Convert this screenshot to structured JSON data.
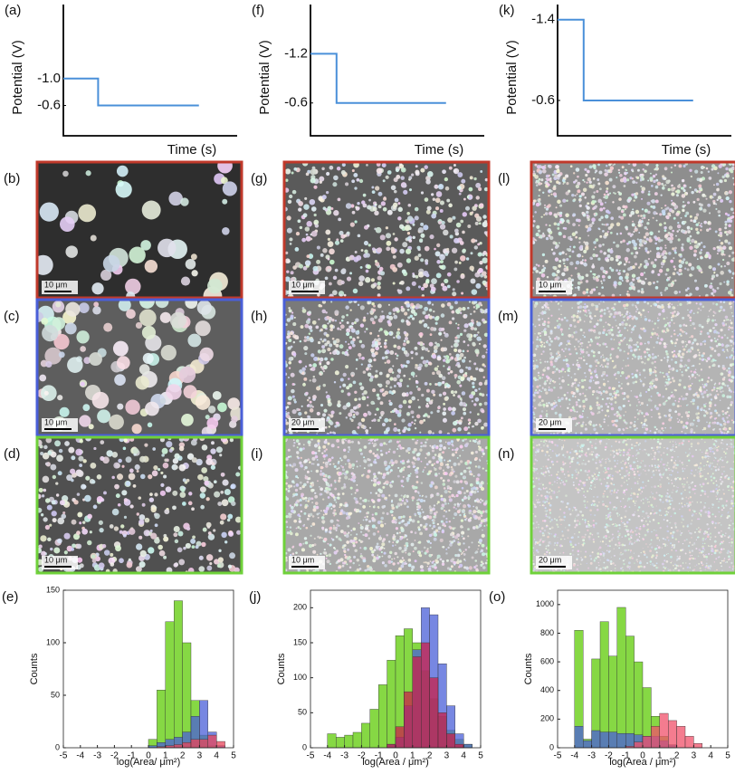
{
  "chart_data": [
    {
      "type": "step",
      "label": "(a)",
      "xlabel": "Time (s)",
      "ylabel": "Potential (V)",
      "xlim": [
        0,
        1
      ],
      "ylim": [
        -0.15,
        -2.1
      ],
      "yticks": [
        {
          "value": -1.0,
          "label": "-1.0"
        },
        {
          "value": -0.6,
          "label": "-0.6"
        }
      ],
      "series": [
        {
          "color": "#4a90d9",
          "x": [
            0,
            0.2,
            0.2,
            0.78
          ],
          "values": [
            -1.0,
            -1.0,
            -0.6,
            -0.6
          ]
        }
      ]
    },
    {
      "type": "step",
      "label": "(f)",
      "xlabel": "Time (s)",
      "ylabel": "Potential (V)",
      "xlim": [
        0,
        1
      ],
      "ylim": [
        -0.2,
        -1.8
      ],
      "yticks": [
        {
          "value": -1.2,
          "label": "-1.2"
        },
        {
          "value": -0.6,
          "label": "-0.6"
        }
      ],
      "series": [
        {
          "color": "#4a90d9",
          "x": [
            0,
            0.15,
            0.15,
            0.78
          ],
          "values": [
            -1.2,
            -1.2,
            -0.6,
            -0.6
          ]
        }
      ]
    },
    {
      "type": "step",
      "label": "(k)",
      "xlabel": "Time (s)",
      "ylabel": "Potential (V)",
      "xlim": [
        0,
        1
      ],
      "ylim": [
        -0.25,
        -1.55
      ],
      "yticks": [
        {
          "value": -1.4,
          "label": "-1.4"
        },
        {
          "value": -0.6,
          "label": "-0.6"
        }
      ],
      "series": [
        {
          "color": "#4a90d9",
          "x": [
            0,
            0.15,
            0.15,
            0.78
          ],
          "values": [
            -1.4,
            -1.4,
            -0.6,
            -0.6
          ]
        }
      ]
    },
    {
      "type": "histogram",
      "label": "(e)",
      "xlabel": "log(Area/ μm²)",
      "ylabel": "Counts",
      "xlim": [
        -5,
        5
      ],
      "ylim": [
        0,
        150
      ],
      "xticks": [
        -5,
        -4,
        -3,
        -2,
        -1,
        0,
        1,
        2,
        3,
        4,
        5
      ],
      "yticks": [
        0,
        50,
        100,
        150
      ],
      "bins": [
        0,
        0.5,
        1,
        1.5,
        2,
        2.5,
        3,
        3.5,
        4,
        4.5
      ],
      "series": [
        {
          "color": "#7fd63a",
          "values": [
            8,
            55,
            120,
            140,
            100,
            45,
            12,
            2,
            0
          ]
        },
        {
          "color": "#4a5fd8",
          "values": [
            2,
            5,
            8,
            10,
            15,
            30,
            45,
            15,
            2
          ]
        },
        {
          "color": "#e8455a",
          "values": [
            0,
            1,
            2,
            3,
            5,
            8,
            8,
            12,
            6
          ]
        }
      ]
    },
    {
      "type": "histogram",
      "label": "(j)",
      "xlabel": "log(Area / μm²)",
      "ylabel": "Counts",
      "xlim": [
        -5,
        5
      ],
      "ylim": [
        0,
        225
      ],
      "xticks": [
        -5,
        -4,
        -3,
        -2,
        -1,
        0,
        1,
        2,
        3,
        4,
        5
      ],
      "yticks": [
        0,
        50,
        100,
        150,
        200
      ],
      "bins": [
        -4,
        -3.5,
        -3,
        -2.5,
        -2,
        -1.5,
        -1,
        -0.5,
        0,
        0.5,
        1,
        1.5,
        2,
        2.5,
        3,
        3.5,
        4,
        4.5
      ],
      "series": [
        {
          "color": "#7fd63a",
          "values": [
            20,
            15,
            18,
            22,
            35,
            55,
            90,
            125,
            160,
            170,
            150,
            110,
            70,
            45,
            25,
            12,
            5
          ]
        },
        {
          "color": "#4a5fd8",
          "values": [
            0,
            0,
            0,
            0,
            0,
            0,
            0,
            5,
            15,
            60,
            140,
            200,
            190,
            120,
            60,
            20,
            5
          ]
        },
        {
          "color": "#c8204a",
          "values": [
            0,
            0,
            0,
            0,
            0,
            0,
            0,
            5,
            30,
            80,
            130,
            150,
            100,
            50,
            20,
            5,
            0
          ]
        }
      ]
    },
    {
      "type": "histogram",
      "label": "(o)",
      "xlabel": "log(Area / μm²)",
      "ylabel": "Counts",
      "xlim": [
        -5,
        5
      ],
      "ylim": [
        0,
        1100
      ],
      "xticks": [
        -5,
        -4,
        -3,
        -2,
        -1,
        0,
        1,
        2,
        3,
        4,
        5
      ],
      "yticks": [
        0,
        200,
        400,
        600,
        800,
        1000
      ],
      "bins": [
        -4,
        -3.5,
        -3,
        -2.5,
        -2,
        -1.5,
        -1,
        -0.5,
        0,
        0.5,
        1,
        1.5,
        2,
        2.5,
        3,
        3.5
      ],
      "series": [
        {
          "color": "#7fd63a",
          "values": [
            820,
            60,
            620,
            880,
            640,
            980,
            780,
            600,
            420,
            220,
            80,
            20,
            0,
            0,
            0
          ]
        },
        {
          "color": "#4a5fd8",
          "values": [
            150,
            50,
            120,
            110,
            110,
            100,
            100,
            90,
            80,
            80,
            50,
            20,
            0,
            0,
            0
          ]
        },
        {
          "color": "#f0506a",
          "values": [
            0,
            0,
            0,
            0,
            0,
            0,
            10,
            40,
            80,
            150,
            240,
            190,
            150,
            80,
            30
          ]
        }
      ]
    }
  ],
  "images": [
    {
      "label": "(b)",
      "scale_bar": "10 μm"
    },
    {
      "label": "(c)",
      "scale_bar": "10 μm"
    },
    {
      "label": "(d)",
      "scale_bar": "10 μm"
    },
    {
      "label": "(g)",
      "scale_bar": "10 μm"
    },
    {
      "label": "(h)",
      "scale_bar": "20 μm"
    },
    {
      "label": "(i)",
      "scale_bar": "10 μm"
    },
    {
      "label": "(l)",
      "scale_bar": "10 μm"
    },
    {
      "label": "(m)",
      "scale_bar": "20 μm"
    },
    {
      "label": "(n)",
      "scale_bar": "20 μm"
    }
  ]
}
